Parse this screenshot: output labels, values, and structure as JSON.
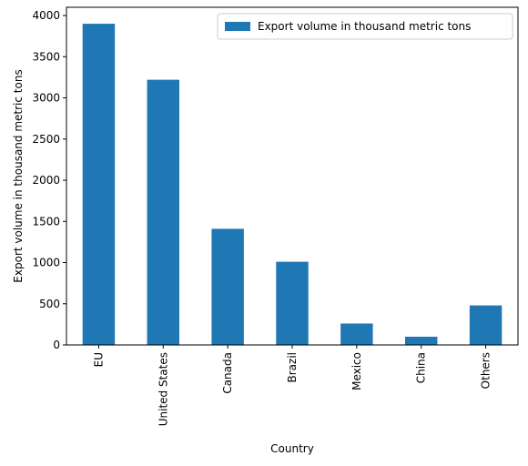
{
  "chart_data": {
    "type": "bar",
    "categories": [
      "EU",
      "United States",
      "Canada",
      "Brazil",
      "Mexico",
      "China",
      "Others"
    ],
    "series": [
      {
        "name": "Export volume in thousand metric tons",
        "values": [
          3900,
          3220,
          1410,
          1010,
          260,
          100,
          480
        ],
        "color": "#1f77b4"
      }
    ],
    "xlabel": "Country",
    "ylabel": "Export volume in thousand metric tons",
    "ylim": [
      0,
      4100
    ],
    "yticks": [
      0,
      500,
      1000,
      1500,
      2000,
      2500,
      3000,
      3500,
      4000
    ],
    "grid": false,
    "legend_position": "top-right"
  }
}
